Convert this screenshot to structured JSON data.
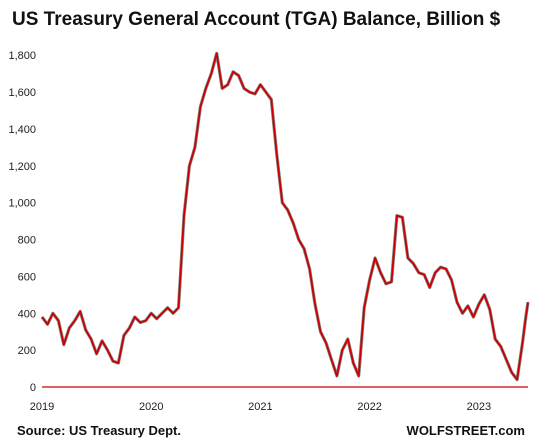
{
  "chart_data": {
    "type": "line",
    "title": "US Treasury General Account (TGA) Balance, Billion $",
    "xlabel": "",
    "ylabel": "",
    "ylim": [
      0,
      1850
    ],
    "yticks": [
      "0",
      "200",
      "400",
      "600",
      "800",
      "1,000",
      "1,200",
      "1,400",
      "1,600",
      "1,800"
    ],
    "xticks": [
      "2019",
      "2020",
      "2021",
      "2022",
      "2023"
    ],
    "xlim": [
      2019.0,
      2023.45
    ],
    "grid": false,
    "legend": "none",
    "series": [
      {
        "color": "#cc0000",
        "points": [
          [
            2019.0,
            380
          ],
          [
            2019.05,
            340
          ],
          [
            2019.1,
            400
          ],
          [
            2019.15,
            360
          ],
          [
            2019.2,
            230
          ],
          [
            2019.25,
            320
          ],
          [
            2019.3,
            360
          ],
          [
            2019.35,
            410
          ],
          [
            2019.4,
            310
          ],
          [
            2019.45,
            260
          ],
          [
            2019.5,
            180
          ],
          [
            2019.55,
            250
          ],
          [
            2019.6,
            200
          ],
          [
            2019.65,
            140
          ],
          [
            2019.7,
            130
          ],
          [
            2019.75,
            280
          ],
          [
            2019.8,
            320
          ],
          [
            2019.85,
            380
          ],
          [
            2019.9,
            350
          ],
          [
            2019.95,
            360
          ],
          [
            2020.0,
            400
          ],
          [
            2020.05,
            370
          ],
          [
            2020.1,
            400
          ],
          [
            2020.15,
            430
          ],
          [
            2020.2,
            400
          ],
          [
            2020.25,
            430
          ],
          [
            2020.3,
            930
          ],
          [
            2020.35,
            1200
          ],
          [
            2020.4,
            1300
          ],
          [
            2020.45,
            1520
          ],
          [
            2020.5,
            1620
          ],
          [
            2020.55,
            1700
          ],
          [
            2020.6,
            1810
          ],
          [
            2020.65,
            1620
          ],
          [
            2020.7,
            1640
          ],
          [
            2020.75,
            1710
          ],
          [
            2020.8,
            1690
          ],
          [
            2020.85,
            1620
          ],
          [
            2020.9,
            1600
          ],
          [
            2020.95,
            1590
          ],
          [
            2021.0,
            1640
          ],
          [
            2021.05,
            1600
          ],
          [
            2021.1,
            1560
          ],
          [
            2021.15,
            1260
          ],
          [
            2021.2,
            1000
          ],
          [
            2021.25,
            960
          ],
          [
            2021.3,
            890
          ],
          [
            2021.35,
            800
          ],
          [
            2021.4,
            750
          ],
          [
            2021.45,
            640
          ],
          [
            2021.5,
            450
          ],
          [
            2021.55,
            300
          ],
          [
            2021.6,
            240
          ],
          [
            2021.65,
            150
          ],
          [
            2021.7,
            60
          ],
          [
            2021.75,
            200
          ],
          [
            2021.8,
            260
          ],
          [
            2021.85,
            130
          ],
          [
            2021.9,
            60
          ],
          [
            2021.95,
            430
          ],
          [
            2022.0,
            580
          ],
          [
            2022.05,
            700
          ],
          [
            2022.1,
            620
          ],
          [
            2022.15,
            560
          ],
          [
            2022.2,
            570
          ],
          [
            2022.25,
            930
          ],
          [
            2022.3,
            920
          ],
          [
            2022.35,
            700
          ],
          [
            2022.4,
            670
          ],
          [
            2022.45,
            620
          ],
          [
            2022.5,
            610
          ],
          [
            2022.55,
            540
          ],
          [
            2022.6,
            620
          ],
          [
            2022.65,
            650
          ],
          [
            2022.7,
            640
          ],
          [
            2022.75,
            580
          ],
          [
            2022.8,
            460
          ],
          [
            2022.85,
            400
          ],
          [
            2022.9,
            440
          ],
          [
            2022.95,
            380
          ],
          [
            2023.0,
            450
          ],
          [
            2023.05,
            500
          ],
          [
            2023.1,
            420
          ],
          [
            2023.15,
            260
          ],
          [
            2023.2,
            220
          ],
          [
            2023.25,
            150
          ],
          [
            2023.3,
            80
          ],
          [
            2023.35,
            40
          ],
          [
            2023.4,
            240
          ],
          [
            2023.43,
            380
          ],
          [
            2023.45,
            460
          ]
        ]
      }
    ]
  },
  "footer": {
    "source": "Source: US Treasury Dept.",
    "brand": "WOLFSTREET.com"
  }
}
